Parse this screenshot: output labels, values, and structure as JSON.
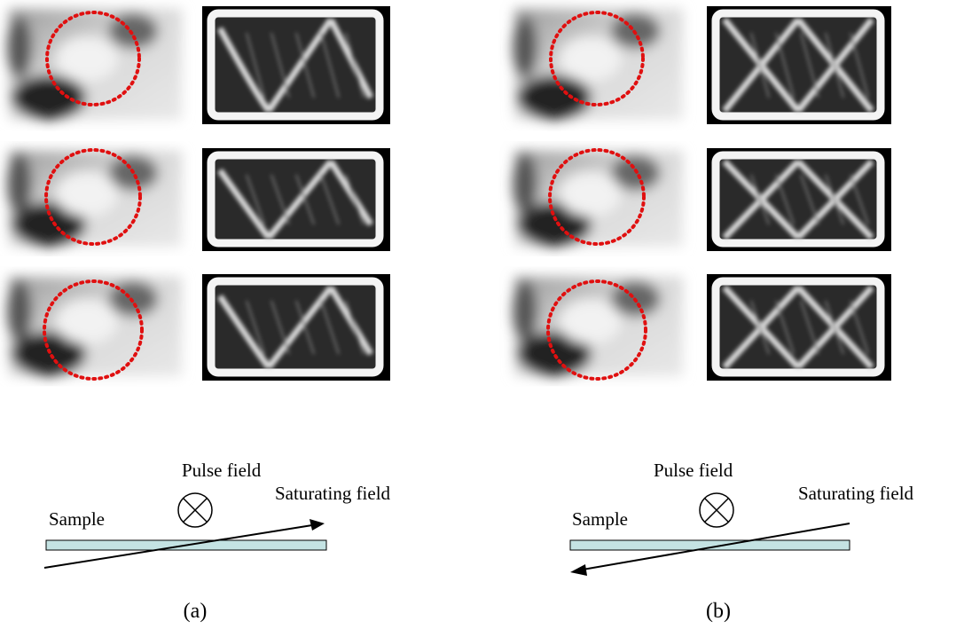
{
  "panels": [
    {
      "label": "(a)",
      "pulse_field": "Pulse field",
      "saturating_field": "Saturating field",
      "sample": "Sample"
    },
    {
      "label": "(b)",
      "pulse_field": "Pulse field",
      "saturating_field": "Saturating field",
      "sample": "Sample"
    }
  ]
}
